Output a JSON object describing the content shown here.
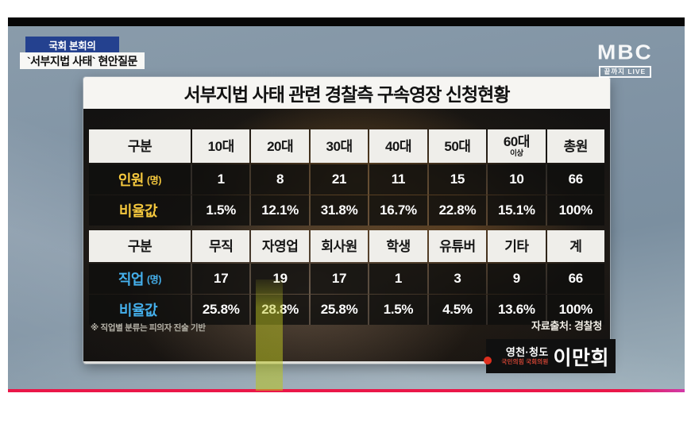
{
  "broadcaster": {
    "logo": "MBC",
    "tagline": "끝까지 LIVE"
  },
  "top_banners": {
    "program": "국회 본회의",
    "topic": "`서부지법 사태` 현안질문"
  },
  "panel": {
    "footnote": "※ 직업별 분류는 피의자 진술 기반",
    "source": "자료출처: 경찰청"
  },
  "nametag": {
    "region": "영천·청도",
    "party": "국민의힘 국회의원",
    "name": "이만희"
  },
  "colors": {
    "age_row_accent": "#f6c93e",
    "occupation_row_accent": "#45b0ec",
    "banner_blue": "#24418f",
    "frame_bottom_red": "#ea1748"
  },
  "chart_data": [
    {
      "type": "table",
      "title": "서부지법 사태 관련 경찰측 구속영장 신청현황",
      "columns": [
        "구분",
        "10대",
        "20대",
        "30대",
        "40대",
        "50대",
        "60대",
        "총원"
      ],
      "column_note": "이상",
      "rows": [
        {
          "label": "인원",
          "unit": "(명)",
          "values": [
            "1",
            "8",
            "21",
            "11",
            "15",
            "10",
            "66"
          ]
        },
        {
          "label": "비율값",
          "unit": "",
          "values": [
            "1.5%",
            "12.1%",
            "31.8%",
            "16.7%",
            "22.8%",
            "15.1%",
            "100%"
          ]
        }
      ]
    },
    {
      "type": "table",
      "title": "",
      "columns": [
        "구분",
        "무직",
        "자영업",
        "회사원",
        "학생",
        "유튜버",
        "기타",
        "계"
      ],
      "column_note": "",
      "rows": [
        {
          "label": "직업",
          "unit": "(명)",
          "values": [
            "17",
            "19",
            "17",
            "1",
            "3",
            "9",
            "66"
          ]
        },
        {
          "label": "비율값",
          "unit": "",
          "values": [
            "25.8%",
            "28.8%",
            "25.8%",
            "1.5%",
            "4.5%",
            "13.6%",
            "100%"
          ]
        }
      ]
    }
  ]
}
